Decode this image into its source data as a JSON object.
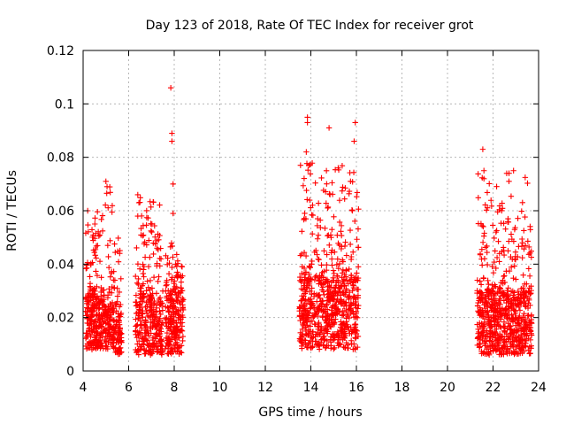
{
  "chart_data": {
    "type": "scatter",
    "title": "Day 123 of 2018, Rate Of TEC Index for receiver grot",
    "xlabel": "GPS time / hours",
    "ylabel": "ROTI / TECUs",
    "xlim": [
      4,
      24
    ],
    "ylim": [
      0,
      0.12
    ],
    "x_ticks": [
      4,
      6,
      8,
      10,
      12,
      14,
      16,
      18,
      20,
      22,
      24
    ],
    "x_tick_labels": [
      "4",
      "6",
      "8",
      "10",
      "12",
      "14",
      "16",
      "18",
      "20",
      "22",
      "24"
    ],
    "y_ticks": [
      0,
      0.02,
      0.04,
      0.06,
      0.08,
      0.1,
      0.12
    ],
    "y_tick_labels": [
      "0",
      "0.02",
      "0.04",
      "0.06",
      "0.08",
      "0.1",
      "0.12"
    ],
    "grid": true,
    "marker": "plus",
    "color": "#ff0000",
    "clusters": [
      {
        "x_range": [
          4.1,
          4.95
        ],
        "y_core": [
          0.008,
          0.03
        ],
        "y_max": 0.06,
        "count": 260
      },
      {
        "x_range": [
          4.95,
          5.35
        ],
        "y_core": [
          0.008,
          0.025
        ],
        "y_max": 0.071,
        "count": 110
      },
      {
        "x_range": [
          5.35,
          5.7
        ],
        "y_core": [
          0.006,
          0.022
        ],
        "y_max": 0.05,
        "count": 90
      },
      {
        "x_range": [
          6.3,
          7.5
        ],
        "y_core": [
          0.006,
          0.03
        ],
        "y_max": 0.066,
        "count": 320
      },
      {
        "x_range": [
          7.6,
          8.4
        ],
        "y_core": [
          0.006,
          0.03
        ],
        "y_max": 0.048,
        "count": 230
      },
      {
        "x_range": [
          13.5,
          16.1
        ],
        "y_core": [
          0.008,
          0.035
        ],
        "y_max": 0.078,
        "count": 700
      },
      {
        "x_range": [
          21.3,
          23.7
        ],
        "y_core": [
          0.006,
          0.03
        ],
        "y_max": 0.075,
        "count": 700
      }
    ],
    "notable_points": [
      {
        "x": 7.85,
        "y": 0.106
      },
      {
        "x": 7.9,
        "y": 0.089
      },
      {
        "x": 7.9,
        "y": 0.086
      },
      {
        "x": 7.95,
        "y": 0.07
      },
      {
        "x": 7.95,
        "y": 0.059
      },
      {
        "x": 13.85,
        "y": 0.095
      },
      {
        "x": 13.85,
        "y": 0.093
      },
      {
        "x": 14.8,
        "y": 0.091
      },
      {
        "x": 15.95,
        "y": 0.093
      },
      {
        "x": 15.9,
        "y": 0.086
      },
      {
        "x": 13.8,
        "y": 0.082
      },
      {
        "x": 15.2,
        "y": 0.076
      },
      {
        "x": 21.55,
        "y": 0.083
      },
      {
        "x": 21.6,
        "y": 0.075
      },
      {
        "x": 21.6,
        "y": 0.072
      },
      {
        "x": 22.9,
        "y": 0.075
      },
      {
        "x": 22.6,
        "y": 0.074
      },
      {
        "x": 22.7,
        "y": 0.071
      },
      {
        "x": 4.2,
        "y": 0.06
      },
      {
        "x": 5.0,
        "y": 0.071
      },
      {
        "x": 5.05,
        "y": 0.069
      },
      {
        "x": 6.4,
        "y": 0.066
      },
      {
        "x": 6.45,
        "y": 0.063
      }
    ]
  }
}
